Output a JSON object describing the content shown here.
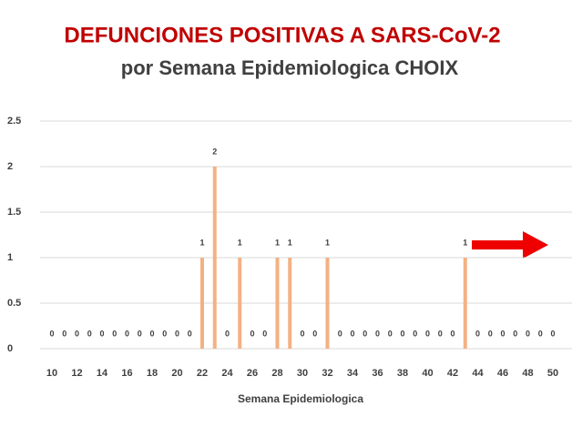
{
  "chart_data": {
    "type": "bar",
    "title": "DEFUNCIONES POSITIVAS A SARS-CoV-2",
    "subtitle": "por Semana Epidemiologica CHOIX",
    "x_label": "Semana Epidemiologica",
    "categories": [
      "10",
      null,
      "12",
      null,
      "14",
      null,
      "16",
      null,
      "18",
      null,
      "20",
      null,
      "22",
      null,
      "24",
      null,
      "26",
      null,
      "28",
      null,
      "30",
      null,
      "32",
      null,
      "34",
      null,
      "36",
      null,
      "38",
      null,
      "40",
      null,
      "42",
      null,
      "44",
      null,
      "46",
      null,
      "48",
      null,
      "50"
    ],
    "values": [
      0,
      0,
      0,
      0,
      0,
      0,
      0,
      0,
      0,
      0,
      0,
      0,
      1,
      2,
      0,
      1,
      0,
      0,
      1,
      1,
      0,
      0,
      1,
      0,
      0,
      0,
      0,
      0,
      0,
      0,
      0,
      0,
      0,
      1,
      0,
      0,
      0,
      0,
      0,
      0,
      0
    ],
    "color": "#f4b183",
    "ylim": [
      0,
      2.5
    ],
    "yticks": [
      0,
      0.5,
      1,
      1.5,
      2,
      2.5
    ],
    "grid": true
  }
}
